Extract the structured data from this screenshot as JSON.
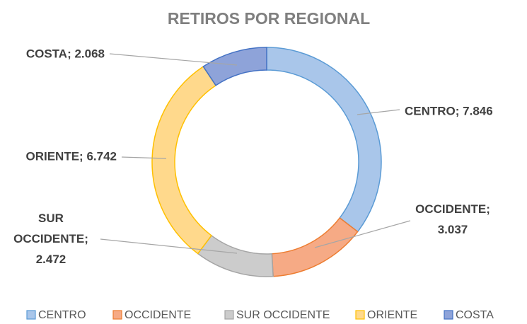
{
  "chart_data": {
    "type": "donut",
    "title": "RETIROS POR REGIONAL",
    "categories": [
      "CENTRO",
      "OCCIDENTE",
      "SUR OCCIDENTE",
      "ORIENTE",
      "COSTA"
    ],
    "values": [
      7846,
      3037,
      2472,
      6742,
      2068
    ],
    "value_labels": [
      "CENTRO; 7.846",
      "OCCIDENTE; 3.037",
      "SUR OCCIDENTE; 2.472",
      "ORIENTE; 6.742",
      "COSTA; 2.068"
    ],
    "colors": [
      "#a9c6ea",
      "#f6aa85",
      "#cccccc",
      "#ffd98c",
      "#8ea3d9"
    ],
    "stroke_colors": [
      "#5b9bd5",
      "#ed7d31",
      "#a5a5a5",
      "#ffc000",
      "#4472c4"
    ],
    "legend": "bottom"
  }
}
